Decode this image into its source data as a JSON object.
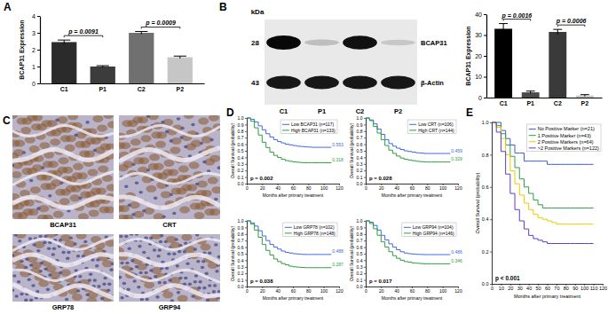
{
  "panel_labels": [
    "A",
    "B",
    "C",
    "D",
    "E"
  ],
  "blot": {
    "unit": "kDa",
    "rows": [
      {
        "label": "BCAP31",
        "kda": 28
      },
      {
        "label": "β-Actin",
        "kda": 43
      }
    ],
    "lanes": [
      "C1",
      "P1",
      "C2",
      "P2"
    ]
  },
  "ihc": {
    "labels": [
      "BCAP31",
      "CRT",
      "GRP78",
      "GRP94"
    ]
  },
  "chart_data": [
    {
      "type": "bar",
      "y_label": "BCAP31 Expression",
      "categories": [
        "C1",
        "P1",
        "C2",
        "P2"
      ],
      "values": [
        2.45,
        1.0,
        3.0,
        1.55
      ],
      "error": [
        0.12,
        0.05,
        0.08,
        0.07
      ],
      "colors": [
        "#2b2b2b",
        "#3c3c3c",
        "#707070",
        "#c6c6c6"
      ],
      "ylim": [
        0,
        4
      ],
      "yticks": [
        0,
        1,
        2,
        3,
        4
      ],
      "annotations": [
        "p = 0.0091",
        "p = 0.0009"
      ]
    },
    {
      "type": "bar",
      "y_label": "BCAP31 Expression",
      "categories": [
        "C1",
        "P1",
        "C2",
        "P2"
      ],
      "values": [
        33,
        2.5,
        31.5,
        1.0
      ],
      "error": [
        2.5,
        0.6,
        1.2,
        0.4
      ],
      "colors": [
        "#000000",
        "#4a4a4a",
        "#3a3a3a",
        "#c8c8c8"
      ],
      "ylim": [
        0,
        40
      ],
      "yticks": [
        0,
        10,
        20,
        30,
        40
      ],
      "annotations": [
        "p = 0.0016",
        "p = 0.0006"
      ]
    },
    {
      "type": "line",
      "line_style": "step",
      "x_label": "Months after primary treatment",
      "y_label": "Overall Survival (probability)",
      "x": [
        0,
        5,
        10,
        15,
        20,
        25,
        30,
        35,
        40,
        45,
        50,
        55,
        60,
        65,
        70,
        75,
        80,
        85,
        90,
        95,
        100,
        105,
        110
      ],
      "xlim": [
        0,
        120
      ],
      "xticks": [
        0,
        20,
        40,
        60,
        80,
        100,
        120
      ],
      "ylim": [
        0,
        1
      ],
      "yticks": [
        {
          "value": 0,
          "label": "0.0"
        },
        {
          "value": 0.1,
          "label": "0.1"
        },
        {
          "value": 0.2,
          "label": "0.2"
        },
        {
          "value": 0.3,
          "label": "0.3"
        },
        {
          "value": 0.4,
          "label": "0.4"
        },
        {
          "value": 0.5,
          "label": "0.5"
        },
        {
          "value": 0.6,
          "label": "0.6"
        },
        {
          "value": 0.7,
          "label": "0.7"
        },
        {
          "value": 0.8,
          "label": "0.8"
        },
        {
          "value": 0.9,
          "label": "0.9"
        },
        {
          "value": 1,
          "label": "1.0"
        }
      ],
      "legend": "upper right",
      "series": [
        {
          "name": "Low BCAP31 (n=117)",
          "color": "#4169e1",
          "values": [
            1,
            0.98,
            0.94,
            0.88,
            0.82,
            0.76,
            0.71,
            0.67,
            0.64,
            0.62,
            0.6,
            0.59,
            0.58,
            0.57,
            0.565,
            0.56,
            0.556,
            0.553,
            0.553,
            0.553,
            0.553,
            0.553,
            0.553
          ]
        },
        {
          "name": "High BCAP31 (n=133)",
          "color": "#2e9e3e",
          "values": [
            1,
            0.95,
            0.85,
            0.74,
            0.63,
            0.55,
            0.48,
            0.43,
            0.4,
            0.37,
            0.35,
            0.34,
            0.33,
            0.325,
            0.32,
            0.318,
            0.318,
            0.318,
            0.318,
            0.318,
            0.318,
            0.318,
            0.318
          ]
        }
      ],
      "annotations": [
        {
          "text": "0.553",
          "series": 0
        },
        {
          "text": "0.318",
          "series": 1
        },
        {
          "text": "p = 0.002"
        }
      ]
    },
    {
      "type": "line",
      "line_style": "step",
      "x_label": "Months after primary treatment",
      "y_label": "Overall Survival (probability)",
      "x": [
        0,
        5,
        10,
        15,
        20,
        25,
        30,
        35,
        40,
        45,
        50,
        55,
        60,
        65,
        70,
        75,
        80,
        85,
        90,
        95,
        100,
        105,
        110
      ],
      "xlim": [
        0,
        120
      ],
      "xticks": [
        0,
        20,
        40,
        60,
        80,
        100,
        120
      ],
      "ylim": [
        0,
        1
      ],
      "yticks": [
        {
          "value": 0,
          "label": "0.0"
        },
        {
          "value": 0.1,
          "label": "0.1"
        },
        {
          "value": 0.2,
          "label": "0.2"
        },
        {
          "value": 0.3,
          "label": "0.3"
        },
        {
          "value": 0.4,
          "label": "0.4"
        },
        {
          "value": 0.5,
          "label": "0.5"
        },
        {
          "value": 0.6,
          "label": "0.6"
        },
        {
          "value": 0.7,
          "label": "0.7"
        },
        {
          "value": 0.8,
          "label": "0.8"
        },
        {
          "value": 0.9,
          "label": "0.9"
        },
        {
          "value": 1,
          "label": "1.0"
        }
      ],
      "legend": "upper right",
      "series": [
        {
          "name": "Low CRT (n=106)",
          "color": "#4169e1",
          "values": [
            1,
            0.97,
            0.91,
            0.83,
            0.75,
            0.67,
            0.61,
            0.57,
            0.54,
            0.52,
            0.5,
            0.49,
            0.48,
            0.47,
            0.465,
            0.46,
            0.459,
            0.459,
            0.459,
            0.459,
            0.459,
            0.459,
            0.459
          ]
        },
        {
          "name": "High CRT (n=144)",
          "color": "#2e9e3e",
          "values": [
            1,
            0.96,
            0.87,
            0.77,
            0.67,
            0.58,
            0.51,
            0.46,
            0.42,
            0.39,
            0.37,
            0.36,
            0.35,
            0.34,
            0.335,
            0.33,
            0.329,
            0.329,
            0.329,
            0.329,
            0.329,
            0.329,
            0.329
          ]
        }
      ],
      "annotations": [
        {
          "text": "0.459",
          "series": 0
        },
        {
          "text": "0.329",
          "series": 1
        },
        {
          "text": "p = 0.028"
        }
      ]
    },
    {
      "type": "line",
      "line_style": "step",
      "x_label": "Months after primary treatment",
      "y_label": "Overall Survival (probability)",
      "x": [
        0,
        5,
        10,
        15,
        20,
        25,
        30,
        35,
        40,
        45,
        50,
        55,
        60,
        65,
        70,
        75,
        80,
        85,
        90,
        95,
        100,
        105,
        110
      ],
      "xlim": [
        0,
        120
      ],
      "xticks": [
        0,
        20,
        40,
        60,
        80,
        100,
        120
      ],
      "ylim": [
        0,
        1
      ],
      "yticks": [
        {
          "value": 0,
          "label": "0.0"
        },
        {
          "value": 0.1,
          "label": "0.1"
        },
        {
          "value": 0.2,
          "label": "0.2"
        },
        {
          "value": 0.3,
          "label": "0.3"
        },
        {
          "value": 0.4,
          "label": "0.4"
        },
        {
          "value": 0.5,
          "label": "0.5"
        },
        {
          "value": 0.6,
          "label": "0.6"
        },
        {
          "value": 0.7,
          "label": "0.7"
        },
        {
          "value": 0.8,
          "label": "0.8"
        },
        {
          "value": 0.9,
          "label": "0.9"
        },
        {
          "value": 1,
          "label": "1.0"
        }
      ],
      "legend": "upper right",
      "series": [
        {
          "name": "Low GRP78 (n=102)",
          "color": "#4169e1",
          "values": [
            1,
            0.97,
            0.92,
            0.85,
            0.77,
            0.7,
            0.64,
            0.6,
            0.57,
            0.54,
            0.52,
            0.51,
            0.5,
            0.495,
            0.49,
            0.488,
            0.488,
            0.488,
            0.488,
            0.488,
            0.488,
            0.488,
            0.488
          ]
        },
        {
          "name": "High GRP78 (n=148)",
          "color": "#2e9e3e",
          "values": [
            1,
            0.95,
            0.86,
            0.75,
            0.64,
            0.55,
            0.48,
            0.42,
            0.38,
            0.35,
            0.33,
            0.31,
            0.3,
            0.295,
            0.29,
            0.287,
            0.287,
            0.287,
            0.287,
            0.287,
            0.287,
            0.287,
            0.287
          ]
        }
      ],
      "annotations": [
        {
          "text": "0.488",
          "series": 0
        },
        {
          "text": "0.287",
          "series": 1
        },
        {
          "text": "p = 0.038"
        }
      ]
    },
    {
      "type": "line",
      "line_style": "step",
      "x_label": "Months after primary treatment",
      "y_label": "Overall Survival (probability)",
      "x": [
        0,
        5,
        10,
        15,
        20,
        25,
        30,
        35,
        40,
        45,
        50,
        55,
        60,
        65,
        70,
        75,
        80,
        85,
        90,
        95,
        100,
        105,
        110
      ],
      "xlim": [
        0,
        120
      ],
      "xticks": [
        0,
        20,
        40,
        60,
        80,
        100,
        120
      ],
      "ylim": [
        0,
        1
      ],
      "yticks": [
        {
          "value": 0,
          "label": "0.0"
        },
        {
          "value": 0.1,
          "label": "0.1"
        },
        {
          "value": 0.2,
          "label": "0.2"
        },
        {
          "value": 0.3,
          "label": "0.3"
        },
        {
          "value": 0.4,
          "label": "0.4"
        },
        {
          "value": 0.5,
          "label": "0.5"
        },
        {
          "value": 0.6,
          "label": "0.6"
        },
        {
          "value": 0.7,
          "label": "0.7"
        },
        {
          "value": 0.8,
          "label": "0.8"
        },
        {
          "value": 0.9,
          "label": "0.9"
        },
        {
          "value": 1,
          "label": "1.0"
        }
      ],
      "legend": "upper right",
      "series": [
        {
          "name": "Low GRP94 (n=104)",
          "color": "#4169e1",
          "values": [
            1,
            0.98,
            0.93,
            0.86,
            0.78,
            0.71,
            0.65,
            0.6,
            0.56,
            0.53,
            0.51,
            0.5,
            0.495,
            0.49,
            0.488,
            0.486,
            0.486,
            0.486,
            0.486,
            0.486,
            0.486,
            0.486,
            0.486
          ]
        },
        {
          "name": "High GRP94 (n=146)",
          "color": "#2e9e3e",
          "values": [
            1,
            0.96,
            0.88,
            0.78,
            0.68,
            0.6,
            0.53,
            0.47,
            0.43,
            0.4,
            0.38,
            0.37,
            0.36,
            0.355,
            0.35,
            0.346,
            0.346,
            0.346,
            0.346,
            0.346,
            0.346,
            0.346,
            0.346
          ]
        }
      ],
      "annotations": [
        {
          "text": "0.486",
          "series": 0
        },
        {
          "text": "0.346",
          "series": 1
        },
        {
          "text": "p = 0.017"
        }
      ]
    },
    {
      "type": "line",
      "line_style": "step",
      "x_label": "Months after primary treatment",
      "y_label": "Overall Survival (probability)",
      "x": [
        0,
        5,
        10,
        15,
        20,
        25,
        30,
        35,
        40,
        45,
        50,
        55,
        60,
        65,
        70,
        75,
        80,
        85,
        90,
        95,
        100,
        105,
        110
      ],
      "xlim": [
        0,
        120
      ],
      "xticks": [
        0,
        10,
        20,
        30,
        40,
        50,
        60,
        70,
        80,
        90,
        100,
        110,
        120
      ],
      "ylim": [
        0,
        1
      ],
      "yticks": [
        {
          "value": 0,
          "label": "0.0"
        },
        {
          "value": 0.2,
          "label": "0.2"
        },
        {
          "value": 0.4,
          "label": "0.4"
        },
        {
          "value": 0.6,
          "label": "0.6"
        },
        {
          "value": 0.8,
          "label": "0.8"
        },
        {
          "value": 1,
          "label": "1.0"
        }
      ],
      "legend": "upper right",
      "series": [
        {
          "name": "No Positive Marker (n=21)",
          "color": "#3b5bdb",
          "values": [
            1,
            1,
            0.95,
            0.9,
            0.86,
            0.81,
            0.81,
            0.76,
            0.76,
            0.76,
            0.76,
            0.76,
            0.74,
            0.74,
            0.74,
            0.74,
            0.74,
            0.74,
            0.74,
            0.74,
            0.74,
            0.74,
            0.74
          ]
        },
        {
          "name": "1 Positive Marker (n=43)",
          "color": "#2f9e44",
          "values": [
            1,
            0.98,
            0.93,
            0.86,
            0.79,
            0.72,
            0.65,
            0.6,
            0.56,
            0.52,
            0.49,
            0.47,
            0.47,
            0.47,
            0.47,
            0.47,
            0.47,
            0.47,
            0.47,
            0.47,
            0.47,
            0.47,
            0.47
          ]
        },
        {
          "name": "2 Positive Markers (n=64)",
          "color": "#f0c800",
          "values": [
            1,
            0.97,
            0.9,
            0.8,
            0.7,
            0.62,
            0.55,
            0.5,
            0.46,
            0.43,
            0.41,
            0.4,
            0.39,
            0.38,
            0.37,
            0.37,
            0.37,
            0.37,
            0.37,
            0.37,
            0.37,
            0.37,
            0.37
          ]
        },
        {
          "name": ">2 Positive Markers (n=122)",
          "color": "#5f3dc4",
          "values": [
            1,
            0.94,
            0.82,
            0.68,
            0.56,
            0.46,
            0.39,
            0.34,
            0.3,
            0.28,
            0.27,
            0.26,
            0.25,
            0.25,
            0.25,
            0.25,
            0.25,
            0.25,
            0.25,
            0.25,
            0.25,
            0.25,
            0.25
          ]
        }
      ],
      "annotations": [
        {
          "text": "p < 0.001"
        }
      ]
    }
  ]
}
